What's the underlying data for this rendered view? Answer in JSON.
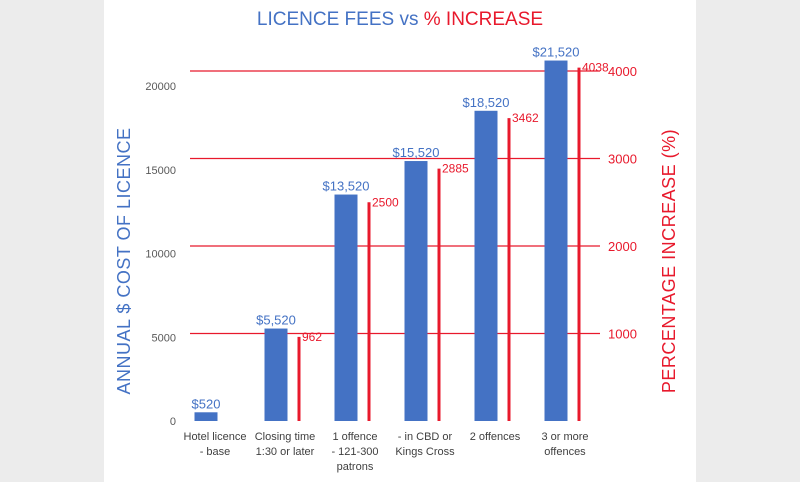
{
  "chart_data": {
    "type": "bar",
    "title_part1": "LICENCE FEES vs ",
    "title_part2": "% INCREASE",
    "categories": [
      [
        "Hotel licence",
        "- base"
      ],
      [
        "Closing time",
        "1:30 or later"
      ],
      [
        "1 offence",
        "- 121-300",
        "patrons"
      ],
      [
        "- in CBD or",
        "Kings Cross"
      ],
      [
        "2 offences"
      ],
      [
        "3 or more",
        "offences"
      ]
    ],
    "series": [
      {
        "values": [
          520,
          5520,
          13520,
          15520,
          18520,
          21520
        ],
        "labels": [
          "$520",
          "$5,520",
          "$13,520",
          "$15,520",
          "$18,520",
          "$21,520"
        ],
        "color": "#4472c4"
      },
      {
        "values": [
          null,
          962,
          2500,
          2885,
          3462,
          4038
        ],
        "labels": [
          "",
          "962",
          "2500",
          "2885",
          "3462",
          "4038"
        ],
        "color": "#e8192c"
      }
    ],
    "ylabel": "ANNUAL $ COST OF LICENCE",
    "y2label": "PERCENTAGE INCREASE (%)",
    "ylim": [
      0,
      22000
    ],
    "yticks": [
      0,
      5000,
      10000,
      15000,
      20000
    ],
    "y2lim": [
      0,
      4000
    ],
    "y2ticks": [
      1000,
      2000,
      3000,
      4000
    ],
    "gridlines": "red, right axis"
  }
}
